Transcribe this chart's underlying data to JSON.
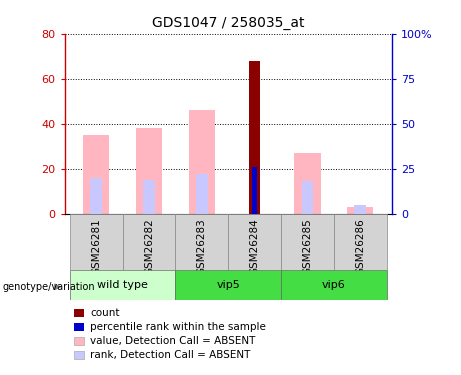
{
  "title": "GDS1047 / 258035_at",
  "samples": [
    "GSM26281",
    "GSM26282",
    "GSM26283",
    "GSM26284",
    "GSM26285",
    "GSM26286"
  ],
  "value_bars": [
    35,
    38,
    46,
    0,
    27,
    3
  ],
  "rank_bars": [
    20,
    19,
    22,
    0,
    18,
    5
  ],
  "count_bar_idx": 3,
  "count_bar_height": 68,
  "percentile_bar_idx": 3,
  "percentile_bar_height": 26,
  "ylim_left": [
    0,
    80
  ],
  "ylim_right": [
    0,
    100
  ],
  "yticks_left": [
    0,
    20,
    40,
    60,
    80
  ],
  "yticks_right": [
    0,
    25,
    50,
    75,
    100
  ],
  "yticklabels_right": [
    "0",
    "25",
    "50",
    "75",
    "100%"
  ],
  "bar_color_value": "#FFB6C1",
  "bar_color_rank": "#C8C8FF",
  "bar_color_count": "#8B0000",
  "bar_color_percentile": "#0000CD",
  "axis_left_color": "#CC0000",
  "axis_right_color": "#0000CC",
  "grid_color": "black",
  "sample_bg": "#D3D3D3",
  "group_bg_wt": "#CCFFCC",
  "group_bg_vip": "#44DD44",
  "group_info": [
    {
      "name": "wild type",
      "start": 0,
      "end": 1,
      "color": "#CCFFCC"
    },
    {
      "name": "vip5",
      "start": 2,
      "end": 3,
      "color": "#44DD44"
    },
    {
      "name": "vip6",
      "start": 4,
      "end": 5,
      "color": "#44DD44"
    }
  ],
  "legend_items": [
    {
      "label": "count",
      "color": "#8B0000"
    },
    {
      "label": "percentile rank within the sample",
      "color": "#0000CD"
    },
    {
      "label": "value, Detection Call = ABSENT",
      "color": "#FFB6C1"
    },
    {
      "label": "rank, Detection Call = ABSENT",
      "color": "#C8C8FF"
    }
  ]
}
